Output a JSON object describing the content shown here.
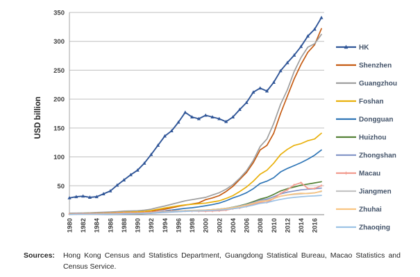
{
  "chart_data": {
    "type": "line",
    "title": "",
    "xlabel": "",
    "ylabel": "USD billion",
    "ylim": [
      0,
      350
    ],
    "ytick_step": 50,
    "xtick_step": 2,
    "grid": "horizontal",
    "legend_position": "right",
    "x": [
      1980,
      1981,
      1982,
      1983,
      1984,
      1985,
      1986,
      1987,
      1988,
      1989,
      1990,
      1991,
      1992,
      1993,
      1994,
      1995,
      1996,
      1997,
      1998,
      1999,
      2000,
      2001,
      2002,
      2003,
      2004,
      2005,
      2006,
      2007,
      2008,
      2009,
      2010,
      2011,
      2012,
      2013,
      2014,
      2015,
      2016,
      2017
    ],
    "series": [
      {
        "id": "hk",
        "name": "HK",
        "color": "#2F5597",
        "marker": "triangle",
        "values": [
          29,
          31,
          32,
          30,
          31,
          36,
          41,
          51,
          60,
          69,
          77,
          89,
          104,
          120,
          136,
          145,
          160,
          177,
          169,
          166,
          172,
          169,
          166,
          161,
          169,
          182,
          194,
          212,
          219,
          214,
          229,
          249,
          263,
          276,
          291,
          309,
          321,
          341
        ]
      },
      {
        "id": "shenzhen",
        "name": "Shenzhen",
        "color": "#C55A11",
        "marker": "none",
        "values": [
          0.3,
          0.4,
          0.6,
          0.8,
          1.1,
          1.4,
          1.8,
          2.3,
          2.9,
          3.3,
          3.7,
          4.5,
          5.8,
          8,
          9.6,
          12,
          14.5,
          16.5,
          18.5,
          20.5,
          26,
          29,
          33,
          40,
          49,
          61,
          73,
          90,
          112,
          120,
          141,
          175,
          205,
          235,
          260,
          281,
          294,
          322
        ]
      },
      {
        "id": "guangzhou",
        "name": "Guangzhou",
        "color": "#9E9E9E",
        "marker": "none",
        "values": [
          2.5,
          2.7,
          2.9,
          3.2,
          3.7,
          4.2,
          4.7,
          5.3,
          6.1,
          6.5,
          6.8,
          7.8,
          9.5,
          12.5,
          15,
          18,
          21,
          24,
          26,
          28,
          30,
          34,
          38,
          44,
          52,
          63,
          76,
          94,
          118,
          131,
          158,
          191,
          216,
          248,
          272,
          290,
          296,
          312
        ]
      },
      {
        "id": "foshan",
        "name": "Foshan",
        "color": "#E9B00A",
        "marker": "none",
        "values": [
          1.3,
          1.4,
          1.6,
          1.8,
          2.2,
          2.6,
          2.9,
          3.4,
          4.2,
          4.6,
          4.9,
          5.7,
          7.1,
          9.5,
          11.5,
          13.5,
          15.5,
          17,
          18,
          19,
          20,
          22,
          24,
          28,
          33,
          40,
          48,
          58,
          70,
          77,
          89,
          104,
          113,
          120,
          123,
          128,
          131,
          141
        ]
      },
      {
        "id": "dongguan",
        "name": "Dongguan",
        "color": "#2E75B6",
        "marker": "none",
        "values": [
          0.4,
          0.5,
          0.6,
          0.7,
          0.9,
          1.1,
          1.3,
          1.6,
          2,
          2.3,
          2.6,
          3.1,
          4,
          5.3,
          6.6,
          8,
          9.5,
          11,
          12,
          13.5,
          15.5,
          17.5,
          20,
          24,
          29,
          33,
          38,
          45,
          54,
          58,
          64,
          74,
          80,
          85,
          90,
          96,
          103,
          112
        ]
      },
      {
        "id": "huizhou",
        "name": "Huizhou",
        "color": "#538135",
        "marker": "none",
        "values": [
          0.3,
          0.35,
          0.4,
          0.5,
          0.6,
          0.7,
          0.8,
          1,
          1.3,
          1.5,
          1.7,
          2.1,
          2.7,
          3.6,
          4.4,
          5.1,
          5.8,
          6.5,
          7,
          7.5,
          8,
          8.7,
          9.6,
          11,
          13,
          15.5,
          18.5,
          22.5,
          27,
          30,
          35,
          41,
          45,
          48,
          51,
          53,
          55,
          57
        ]
      },
      {
        "id": "zhongshan",
        "name": "Zhongshan",
        "color": "#8496C8",
        "marker": "none",
        "values": [
          0.25,
          0.3,
          0.35,
          0.4,
          0.5,
          0.6,
          0.7,
          0.9,
          1.1,
          1.3,
          1.5,
          1.9,
          2.4,
          3.2,
          3.9,
          4.6,
          5.2,
          5.8,
          6.3,
          6.8,
          7.4,
          8.1,
          9,
          10.5,
          12.5,
          15,
          17.5,
          21,
          25,
          27,
          31,
          36,
          39,
          41,
          43,
          44,
          45,
          46
        ]
      },
      {
        "id": "macau",
        "name": "Macau",
        "color": "#F19B8E",
        "marker": "plus",
        "values": [
          1.1,
          1.3,
          1.4,
          1.5,
          1.7,
          1.9,
          2.1,
          2.6,
          3,
          3.2,
          3.2,
          3.6,
          4.4,
          5.1,
          5.8,
          6.5,
          6.6,
          6.4,
          6.2,
          6.1,
          6.1,
          6.3,
          6.8,
          7.9,
          10.3,
          11.6,
          14.3,
          18.1,
          21,
          21.3,
          28.1,
          36.7,
          43,
          51.6,
          55.4,
          45.4,
          45.3,
          50.4
        ]
      },
      {
        "id": "jiangmen",
        "name": "Jiangmen",
        "color": "#C3C3C3",
        "marker": "none",
        "values": [
          0.6,
          0.65,
          0.7,
          0.8,
          1,
          1.1,
          1.2,
          1.4,
          1.8,
          2,
          2.2,
          2.6,
          3.3,
          4.3,
          5,
          5.8,
          6.5,
          7,
          7.4,
          7.8,
          8.2,
          8.8,
          9.6,
          11,
          12.5,
          14.5,
          17,
          20,
          23.5,
          25,
          28,
          32,
          34,
          35,
          36,
          37,
          38,
          40
        ]
      },
      {
        "id": "zhuhai",
        "name": "Zhuhai",
        "color": "#F9C480",
        "marker": "none",
        "values": [
          0.4,
          0.45,
          0.5,
          0.6,
          0.7,
          0.9,
          1,
          1.2,
          1.5,
          1.7,
          1.9,
          2.3,
          3,
          4,
          4.8,
          5.5,
          6.2,
          6.8,
          7.2,
          7.6,
          8,
          8.5,
          9.3,
          10.7,
          12,
          14,
          16.5,
          19.5,
          23,
          24,
          28,
          32,
          34,
          36,
          37,
          36.5,
          37.5,
          41
        ]
      },
      {
        "id": "zhaoqing",
        "name": "Zhaoqing",
        "color": "#9CC2E5",
        "marker": "none",
        "values": [
          0.5,
          0.55,
          0.6,
          0.7,
          0.8,
          0.9,
          1,
          1.2,
          1.5,
          1.7,
          1.9,
          2.2,
          2.8,
          3.7,
          4.4,
          5,
          5.5,
          6,
          6.3,
          6.6,
          7,
          7.4,
          8,
          9,
          10.3,
          12,
          14,
          16.5,
          19.5,
          21,
          24,
          26.5,
          28.5,
          30,
          31,
          32,
          32.5,
          33.5
        ]
      }
    ],
    "colors": {
      "gridline": "#BFBFBF",
      "axis_line": "#7F7F7F",
      "plot_border": "#A6A6A6",
      "tick_text": "#404040",
      "legend_text": "#44546A"
    }
  },
  "sources": {
    "label": "Sources:",
    "text": "Hong Kong Census and Statistics Department, Guangdong Statistical Bureau, Macao Statistics and Census Service."
  }
}
